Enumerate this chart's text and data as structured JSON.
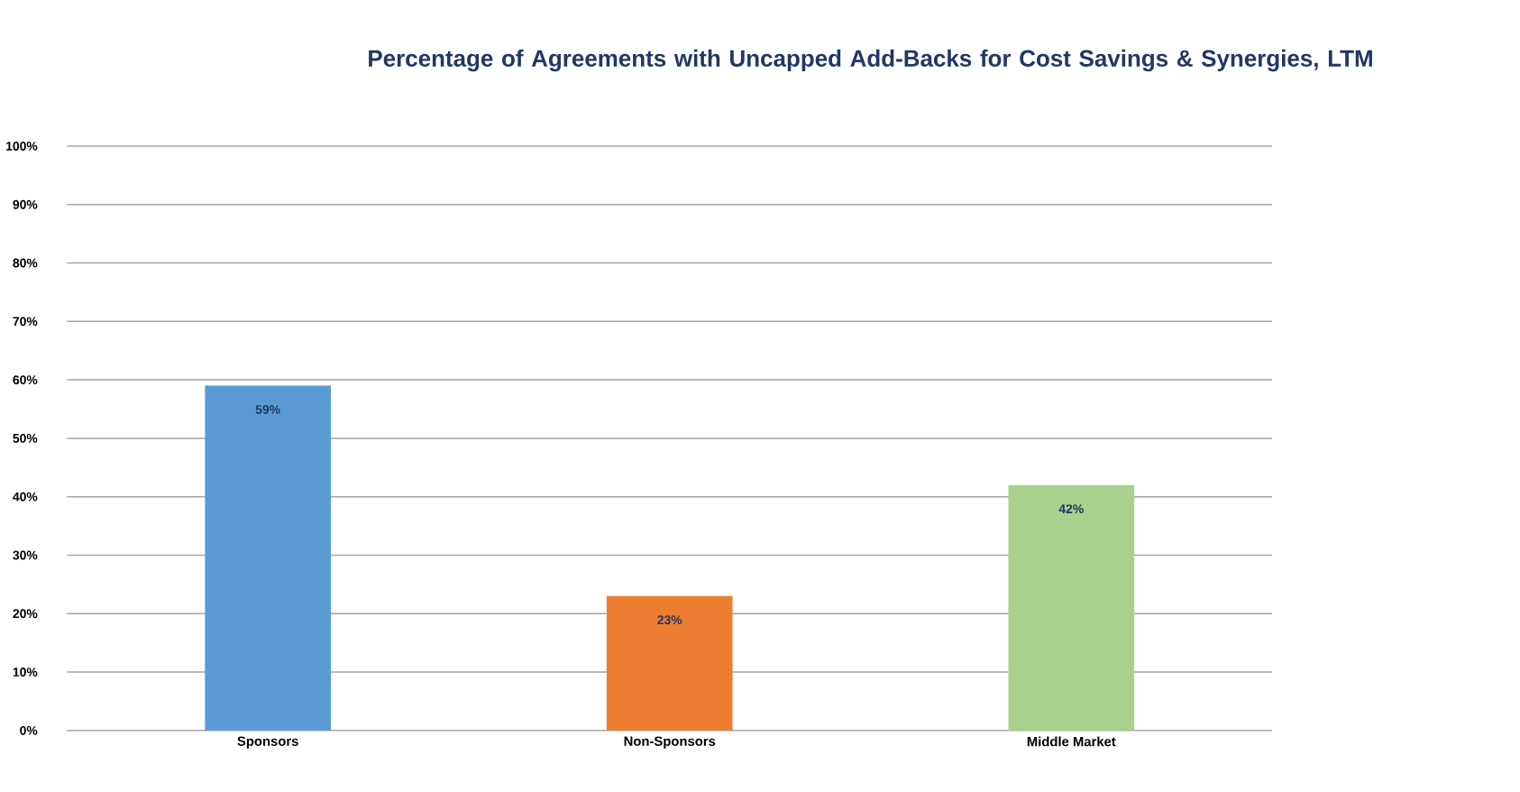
{
  "chart_data": {
    "type": "bar",
    "title": "Percentage of Agreements with Uncapped Add-Backs for Cost Savings & Synergies, LTM",
    "categories": [
      "Sponsors",
      "Non-Sponsors",
      "Middle Market"
    ],
    "values": [
      59,
      23,
      42
    ],
    "colors": [
      "#5b9bd5",
      "#ed7d31",
      "#a9d18e"
    ],
    "value_labels": [
      "59%",
      "23%",
      "42%"
    ],
    "ylim": [
      0,
      100
    ],
    "yticks": [
      {
        "value": 0,
        "label": "0%"
      },
      {
        "value": 10,
        "label": "10%"
      },
      {
        "value": 20,
        "label": "20%"
      },
      {
        "value": 30,
        "label": "30%"
      },
      {
        "value": 40,
        "label": "40%"
      },
      {
        "value": 50,
        "label": "50%"
      },
      {
        "value": 60,
        "label": "60%"
      },
      {
        "value": 70,
        "label": "70%"
      },
      {
        "value": 80,
        "label": "80%"
      },
      {
        "value": 90,
        "label": "90%"
      },
      {
        "value": 100,
        "label": "100%"
      }
    ],
    "grid": "y"
  }
}
